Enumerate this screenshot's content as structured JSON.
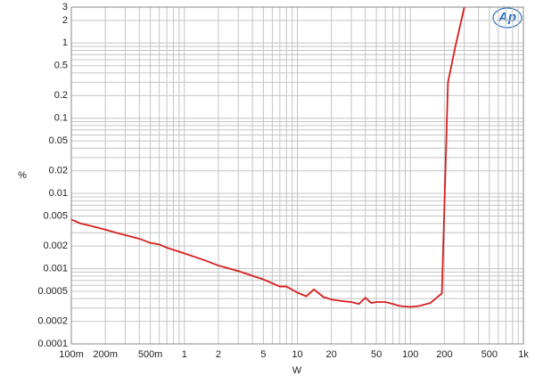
{
  "chart_data": {
    "type": "line",
    "x_label": "W",
    "y_label": "%",
    "logo": "Ap",
    "xscale": "log",
    "yscale": "log",
    "grid": true,
    "color": "#d81e1e",
    "x": [
      0.1,
      0.12,
      0.15,
      0.2,
      0.25,
      0.3,
      0.4,
      0.5,
      0.6,
      0.7,
      1,
      1.5,
      2,
      3,
      5,
      7,
      8,
      10,
      12,
      14,
      17,
      20,
      25,
      30,
      35,
      40,
      45,
      50,
      60,
      70,
      80,
      100,
      120,
      150,
      190,
      215,
      250,
      300
    ],
    "values": [
      0.0045,
      0.004,
      0.0037,
      0.0033,
      0.003,
      0.0028,
      0.0025,
      0.0022,
      0.0021,
      0.0019,
      0.0016,
      0.0013,
      0.0011,
      0.00093,
      0.00072,
      0.00058,
      0.00058,
      0.00048,
      0.00043,
      0.00053,
      0.00042,
      0.00039,
      0.00037,
      0.00036,
      0.00034,
      0.00041,
      0.00035,
      0.00036,
      0.00036,
      0.00034,
      0.00032,
      0.00031,
      0.00032,
      0.00035,
      0.00047,
      0.3,
      0.9,
      3
    ],
    "xlim": [
      0.1,
      1000
    ],
    "ylim": [
      0.0001,
      3
    ],
    "xticks": [
      {
        "value": 0.1,
        "label": "100m"
      },
      {
        "value": 0.2,
        "label": "200m"
      },
      {
        "value": 0.5,
        "label": "500m"
      },
      1,
      2,
      5,
      10,
      20,
      50,
      100,
      200,
      500,
      {
        "value": 1000,
        "label": "1k"
      }
    ],
    "yticks": [
      0.0001,
      0.0002,
      0.0005,
      0.001,
      0.002,
      0.005,
      0.01,
      0.02,
      0.05,
      0.1,
      0.2,
      0.5,
      1,
      2,
      3
    ],
    "x_minor_ticks": [
      0.3,
      0.4,
      0.6,
      0.7,
      0.8,
      0.9,
      3,
      4,
      6,
      7,
      8,
      9,
      30,
      40,
      60,
      70,
      80,
      90,
      300,
      400,
      600,
      700,
      800,
      900
    ],
    "y_minor_ticks": [
      0.0003,
      0.0004,
      0.0006,
      0.0007,
      0.0008,
      0.0009,
      0.003,
      0.004,
      0.006,
      0.007,
      0.008,
      0.009,
      0.03,
      0.04,
      0.06,
      0.07,
      0.08,
      0.09,
      0.3,
      0.4,
      0.6,
      0.7,
      0.8,
      0.9
    ]
  }
}
